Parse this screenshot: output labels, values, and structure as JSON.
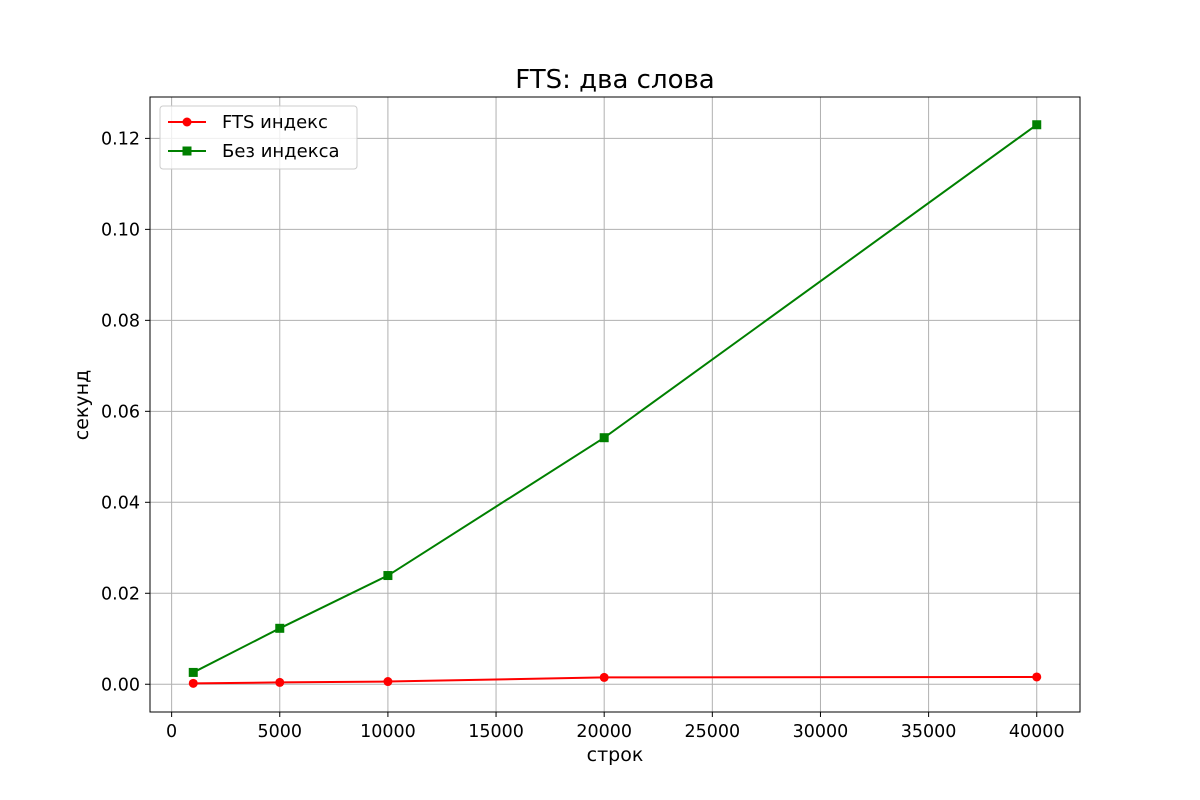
{
  "chart_data": {
    "type": "line",
    "title": "FTS: два слова",
    "xlabel": "строк",
    "ylabel": "секунд",
    "xlim": [
      -1000,
      42000
    ],
    "ylim": [
      -0.0061,
      0.1291
    ],
    "xticks": [
      0,
      5000,
      10000,
      15000,
      20000,
      25000,
      30000,
      35000,
      40000
    ],
    "xtick_labels": [
      "0",
      "5000",
      "10000",
      "15000",
      "20000",
      "25000",
      "30000",
      "35000",
      "40000"
    ],
    "yticks": [
      0.0,
      0.02,
      0.04,
      0.06,
      0.08,
      0.1,
      0.12
    ],
    "ytick_labels": [
      "0.00",
      "0.02",
      "0.04",
      "0.06",
      "0.08",
      "0.10",
      "0.12"
    ],
    "grid": true,
    "legend": "top-left",
    "x": [
      1000,
      5000,
      10000,
      20000,
      40000
    ],
    "series": [
      {
        "name": "FTS индекс",
        "color": "#ff0000",
        "marker": "circle",
        "values": [
          0.0002,
          0.0004,
          0.0006,
          0.0015,
          0.0016
        ]
      },
      {
        "name": "Без индекса",
        "color": "#008000",
        "marker": "square",
        "values": [
          0.0026,
          0.0123,
          0.0239,
          0.0542,
          0.123
        ]
      }
    ]
  }
}
